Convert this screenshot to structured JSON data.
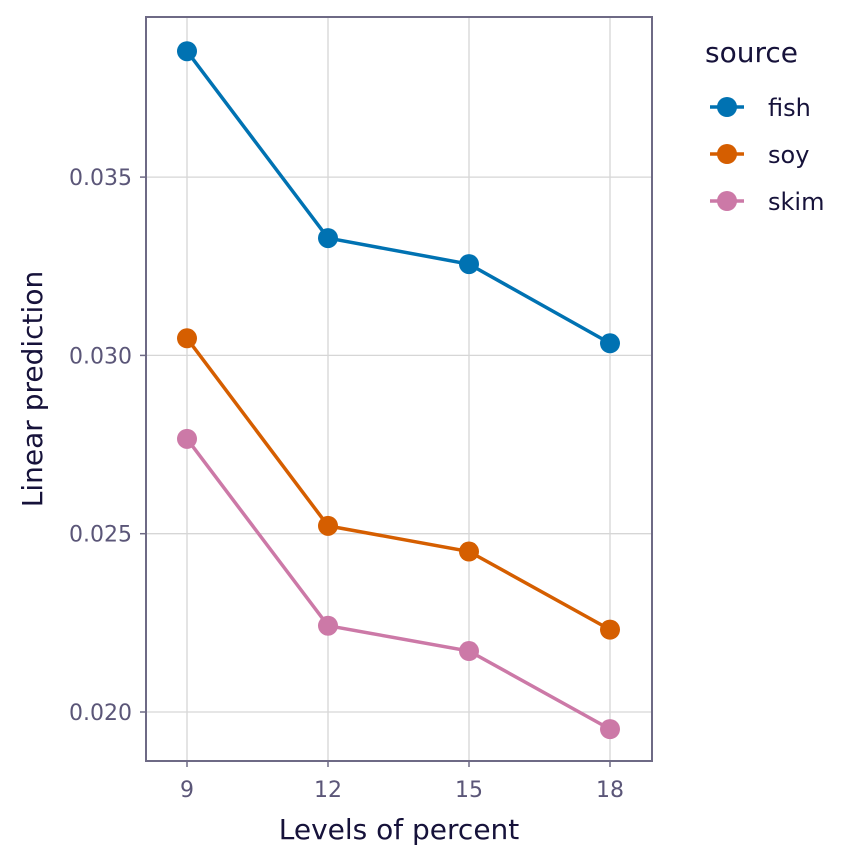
{
  "chart_data": {
    "type": "line",
    "xlabel": "Levels of percent",
    "ylabel": "Linear prediction",
    "x": [
      9,
      12,
      15,
      18
    ],
    "x_tick_labels": [
      "9",
      "12",
      "15",
      "18"
    ],
    "y_ticks": [
      0.02,
      0.025,
      0.03,
      0.035
    ],
    "y_tick_labels": [
      "0.020",
      "0.025",
      "0.030",
      "0.035"
    ],
    "ylim": [
      0.0186,
      0.0395
    ],
    "grid": true,
    "legend": {
      "title": "source",
      "placement": "right"
    },
    "series": [
      {
        "name": "fish",
        "color": "#0072B2",
        "values": [
          0.03853,
          0.03329,
          0.03256,
          0.03034
        ]
      },
      {
        "name": "soy",
        "color": "#D55E00",
        "values": [
          0.03048,
          0.02522,
          0.0245,
          0.02231
        ]
      },
      {
        "name": "skim",
        "color": "#CC79A7",
        "values": [
          0.02766,
          0.02242,
          0.02171,
          0.01952
        ]
      }
    ]
  }
}
